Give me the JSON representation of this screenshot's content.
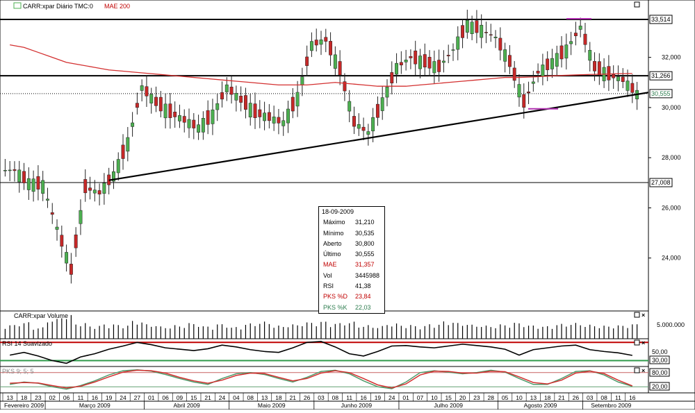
{
  "main_panel": {
    "title": "CARR:xpar Diário TMC:0",
    "indicator_label": "MAE 200",
    "right_labels": [
      "33,514",
      "31,266",
      "30,555",
      "27,008"
    ],
    "y_ticks": [
      "32,000",
      "30,000",
      "28,000",
      "26,000",
      "24,000"
    ]
  },
  "volume_panel": {
    "title": "CARR:xpar Volume",
    "axis_label": "5.000.000"
  },
  "rsi_panel": {
    "title": "RSI 14 Suavizado",
    "levels": [
      "50,00",
      "30,00"
    ]
  },
  "pks_panel": {
    "title": "PKS 9; 5; 5",
    "levels": [
      "80,00",
      "20,00"
    ]
  },
  "x_axis": {
    "days": [
      "13",
      "18",
      "23",
      "02",
      "06",
      "11",
      "16",
      "19",
      "24",
      "27",
      "01",
      "06",
      "09",
      "15",
      "21",
      "24",
      "04",
      "08",
      "13",
      "18",
      "21",
      "26",
      "03",
      "08",
      "11",
      "16",
      "19",
      "24",
      "01",
      "07",
      "10",
      "15",
      "20",
      "23",
      "28",
      "05",
      "10",
      "13",
      "18",
      "21",
      "26",
      "03",
      "08",
      "11",
      "16"
    ],
    "months": [
      "Fevereiro 2009",
      "Março 2009",
      "Abril 2009",
      "Maio 2009",
      "Junho 2009",
      "Julho 2009",
      "Agosto 2009",
      "Setembro 2009"
    ]
  },
  "tooltip": {
    "date": "18-09-2009",
    "rows": [
      {
        "label": "Máximo",
        "value": "31,210",
        "color": "#000000"
      },
      {
        "label": "Mínimo",
        "value": "30,535",
        "color": "#000000"
      },
      {
        "label": "Aberto",
        "value": "30,800",
        "color": "#000000"
      },
      {
        "label": "Último",
        "value": "30,555",
        "color": "#000000"
      },
      {
        "label": "MAE",
        "value": "31,357",
        "color": "#c00000"
      },
      {
        "label": "Vol",
        "value": "3445988",
        "color": "#000000"
      },
      {
        "label": "RSI",
        "value": "41,38",
        "color": "#000000"
      },
      {
        "label": "PKS %D",
        "value": "23,84",
        "color": "#c00000"
      },
      {
        "label": "PKS %K",
        "value": "22,03",
        "color": "#2e7d4f"
      }
    ]
  },
  "colors": {
    "up_candle": "#4caf50",
    "down_candle": "#c62828",
    "mae_line": "#d32f2f",
    "pks_d": "#d32f2f",
    "pks_k": "#4e9a6a",
    "marker": "#b030b0"
  },
  "chart_data": {
    "type": "line",
    "ylim": [
      22.0,
      33.9
    ],
    "series": [
      {
        "name": "CARR:xpar",
        "x": [
          "13",
          "18",
          "23",
          "02",
          "06",
          "11",
          "16",
          "19",
          "24",
          "27",
          "01",
          "06",
          "09",
          "15",
          "21",
          "24",
          "04",
          "08",
          "13",
          "18",
          "21",
          "26",
          "03",
          "08",
          "11",
          "16",
          "19",
          "24",
          "01",
          "07",
          "10",
          "15",
          "20",
          "23",
          "28",
          "05",
          "10",
          "13",
          "18",
          "21",
          "26",
          "03",
          "08",
          "11",
          "16"
        ],
        "values": [
          27.5,
          27.0,
          26.9,
          25.2,
          23.5,
          26.8,
          26.6,
          27.3,
          28.6,
          30.8,
          30.2,
          29.8,
          29.5,
          29.2,
          29.7,
          30.8,
          30.3,
          29.8,
          29.6,
          29.4,
          30.4,
          32.5,
          32.7,
          31.5,
          29.4,
          29.0,
          30.2,
          31.6,
          32.0,
          31.8,
          31.6,
          32.3,
          33.3,
          33.1,
          32.8,
          31.8,
          30.2,
          31.4,
          31.8,
          32.3,
          33.2,
          31.6,
          31.3,
          31.1,
          30.555
        ]
      },
      {
        "name": "MAE 200",
        "x": [
          "13",
          "18",
          "23",
          "02",
          "06",
          "11",
          "16",
          "19",
          "24",
          "27",
          "01",
          "06",
          "09",
          "15",
          "21",
          "24",
          "04",
          "08",
          "13",
          "18",
          "21",
          "26",
          "03",
          "08",
          "11",
          "16",
          "19",
          "24",
          "01",
          "07",
          "10",
          "15",
          "20",
          "23",
          "28",
          "05",
          "10",
          "13",
          "18",
          "21",
          "26",
          "03",
          "08",
          "11",
          "16"
        ],
        "values": [
          32.5,
          32.4,
          32.2,
          32.0,
          31.8,
          31.7,
          31.6,
          31.5,
          31.45,
          31.4,
          31.35,
          31.3,
          31.25,
          31.2,
          31.15,
          31.1,
          31.05,
          31.0,
          30.95,
          30.9,
          30.9,
          30.9,
          30.95,
          31.0,
          30.95,
          30.9,
          30.85,
          30.85,
          30.85,
          30.9,
          30.95,
          31.0,
          31.05,
          31.1,
          31.15,
          31.2,
          31.2,
          31.22,
          31.25,
          31.28,
          31.3,
          31.32,
          31.33,
          31.35,
          31.357
        ]
      }
    ],
    "horizontal_lines": [
      33.514,
      31.266,
      27.008
    ],
    "last_value_line": 30.555,
    "trendline": {
      "from": {
        "x": "19",
        "y": 27.1
      },
      "to": {
        "x": "16",
        "y": 30.6
      }
    },
    "volume": [
      3.2,
      3.8,
      2.6,
      4.5,
      5.4,
      3.6,
      3.0,
      3.4,
      3.2,
      4.1,
      3.3,
      2.8,
      3.1,
      3.6,
      2.9,
      3.4,
      2.7,
      3.5,
      3.9,
      3.0,
      3.3,
      3.8,
      4.0,
      3.6,
      3.9,
      3.1,
      2.9,
      3.5,
      3.2,
      3.0,
      3.4,
      4.0,
      3.6,
      3.2,
      3.0,
      3.3,
      3.7,
      3.1,
      2.9,
      3.4,
      3.6,
      3.2,
      3.0,
      3.1,
      3.4
    ],
    "rsi": [
      42,
      48,
      40,
      30,
      24,
      38,
      45,
      55,
      62,
      70,
      65,
      58,
      55,
      52,
      56,
      64,
      60,
      54,
      50,
      48,
      58,
      70,
      72,
      60,
      45,
      40,
      50,
      62,
      63,
      60,
      58,
      62,
      66,
      63,
      60,
      55,
      42,
      54,
      58,
      62,
      64,
      54,
      50,
      47,
      41.38
    ],
    "rsi_ylim": [
      20,
      75
    ],
    "pks_k": [
      30,
      40,
      35,
      20,
      10,
      25,
      45,
      70,
      88,
      92,
      86,
      72,
      55,
      40,
      30,
      55,
      75,
      80,
      72,
      55,
      40,
      60,
      85,
      90,
      75,
      45,
      20,
      12,
      40,
      80,
      88,
      82,
      75,
      80,
      90,
      82,
      55,
      30,
      30,
      55,
      85,
      88,
      70,
      40,
      22.03
    ],
    "pks_d": [
      35,
      38,
      36,
      25,
      15,
      22,
      40,
      62,
      82,
      90,
      88,
      78,
      60,
      45,
      35,
      48,
      68,
      78,
      76,
      60,
      45,
      55,
      78,
      88,
      80,
      55,
      28,
      15,
      32,
      70,
      86,
      85,
      78,
      78,
      86,
      84,
      62,
      38,
      32,
      48,
      78,
      86,
      76,
      48,
      23.84
    ],
    "pks_ylim": [
      0,
      100
    ]
  }
}
